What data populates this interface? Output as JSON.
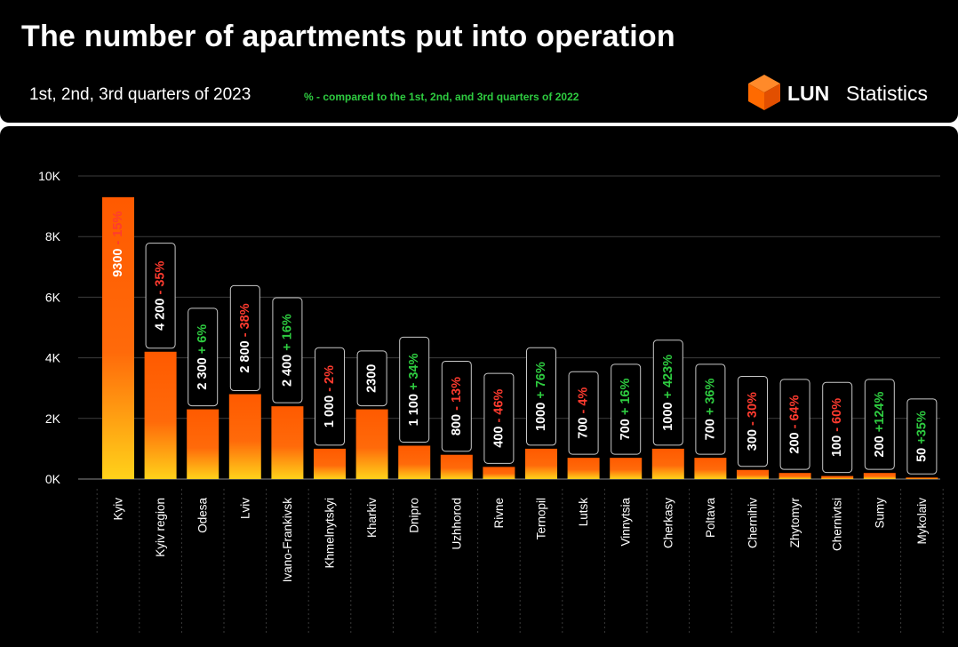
{
  "header": {
    "title": "The number of apartments put into operation",
    "subtitle": "1st, 2nd, 3rd quarters of 2023",
    "note": "% - compared to the 1st, 2nd, and 3rd quarters of 2022",
    "brand_name": "LUN",
    "brand_sub": "Statistics"
  },
  "colors": {
    "background": "#000000",
    "bar_top": "#ff5a00",
    "bar_bottom": "#ffd21a",
    "positive": "#2ecc40",
    "negative": "#ff3b2f",
    "text": "#ffffff",
    "logo": "#ff6a00"
  },
  "chart_data": {
    "type": "bar",
    "yaxis_ticks": [
      "0K",
      "2K",
      "4K",
      "6K",
      "8K",
      "10K"
    ],
    "ylim": [
      0,
      10000
    ],
    "grid": true,
    "categories": [
      "Kyiv",
      "Kyiv region",
      "Odesa",
      "Lviv",
      "Ivano-Frankivsk",
      "Khmelnytskyi",
      "Kharkiv",
      "Dnipro",
      "Uzhhorod",
      "Rivne",
      "Ternopil",
      "Lutsk",
      "Vinnytsia",
      "Cherkasy",
      "Poltava",
      "Chernihiv",
      "Zhytomyr",
      "Chernivtsi",
      "Sumy",
      "Mykolaiv"
    ],
    "values": [
      9300,
      4200,
      2300,
      2800,
      2400,
      1000,
      2300,
      1100,
      800,
      400,
      1000,
      700,
      700,
      1000,
      700,
      300,
      200,
      100,
      200,
      50
    ],
    "value_labels": [
      "9300",
      "4 200",
      "2 300",
      "2 800",
      "2 400",
      "1 000",
      "2300",
      "1 100",
      "800",
      "400",
      "1000",
      "700",
      "700",
      "1000",
      "700",
      "300",
      "200",
      "100",
      "200",
      "50"
    ],
    "change_labels": [
      "- 15%",
      "- 35%",
      "+ 6%",
      "- 38%",
      "+ 16%",
      "- 2%",
      "",
      "+ 34%",
      "- 13%",
      "- 46%",
      "+ 76%",
      "- 4%",
      "+ 16%",
      "+ 423%",
      "+ 36%",
      "- 30%",
      "- 64%",
      "- 60%",
      "+124%",
      "+35%"
    ],
    "change_signs": [
      "neg",
      "neg",
      "pos",
      "neg",
      "pos",
      "neg",
      "none",
      "pos",
      "neg",
      "neg",
      "pos",
      "neg",
      "pos",
      "pos",
      "pos",
      "neg",
      "neg",
      "neg",
      "pos",
      "pos"
    ]
  }
}
